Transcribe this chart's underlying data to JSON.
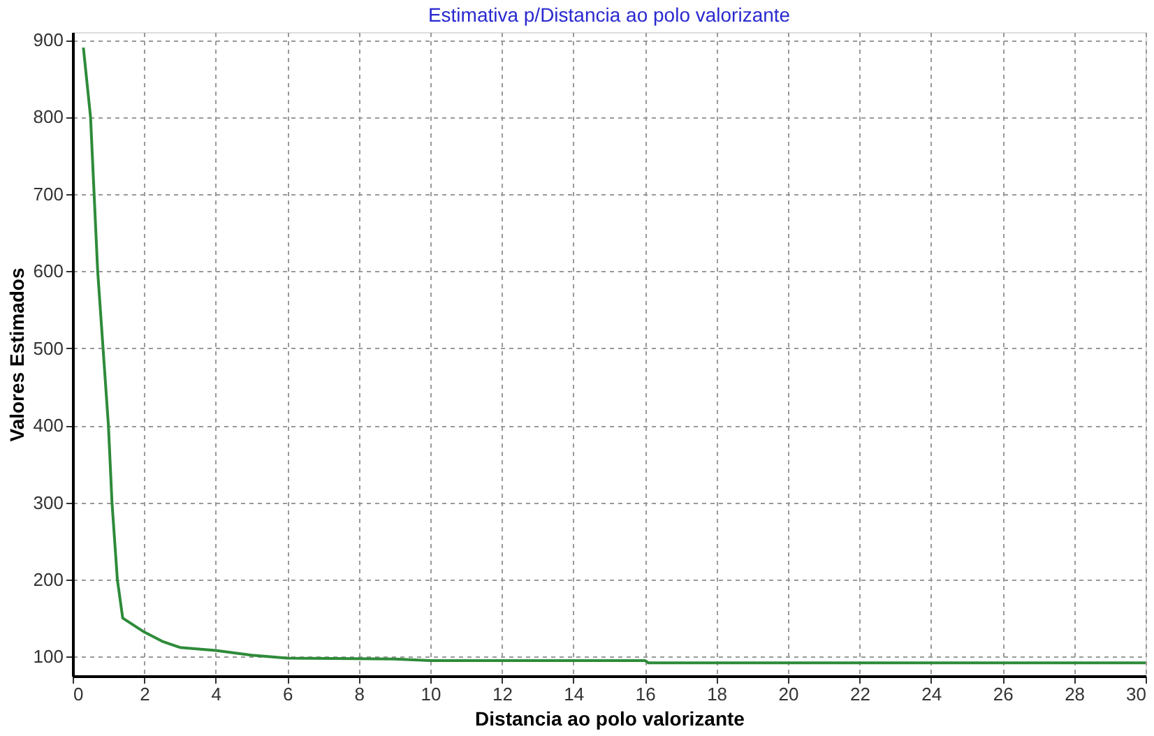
{
  "chart_data": {
    "type": "line",
    "title": "Estimativa p/Distancia ao polo valorizante",
    "xlabel": "Distancia ao polo valorizante",
    "ylabel": "Valores Estimados",
    "x": [
      0.3,
      0.5,
      0.7,
      0.85,
      1.0,
      1.1,
      1.25,
      1.4,
      2,
      2.5,
      3,
      4,
      5,
      6,
      9,
      10,
      16,
      16.1,
      30
    ],
    "series": [
      {
        "color": "#2e8b3a",
        "values": [
          890,
          800,
          600,
          500,
          400,
          300,
          200,
          150,
          132,
          120,
          112,
          108,
          102,
          98,
          97,
          95,
          95,
          92,
          92
        ]
      }
    ],
    "xlim": [
      0,
      30
    ],
    "xticks": [
      0,
      2,
      4,
      6,
      8,
      10,
      12,
      14,
      16,
      18,
      20,
      22,
      24,
      26,
      28,
      30
    ],
    "ylim": [
      75,
      910
    ],
    "yticks": [
      100,
      200,
      300,
      400,
      500,
      600,
      700,
      800,
      900
    ],
    "grid": true,
    "marker": "none",
    "line_style": "solid"
  }
}
